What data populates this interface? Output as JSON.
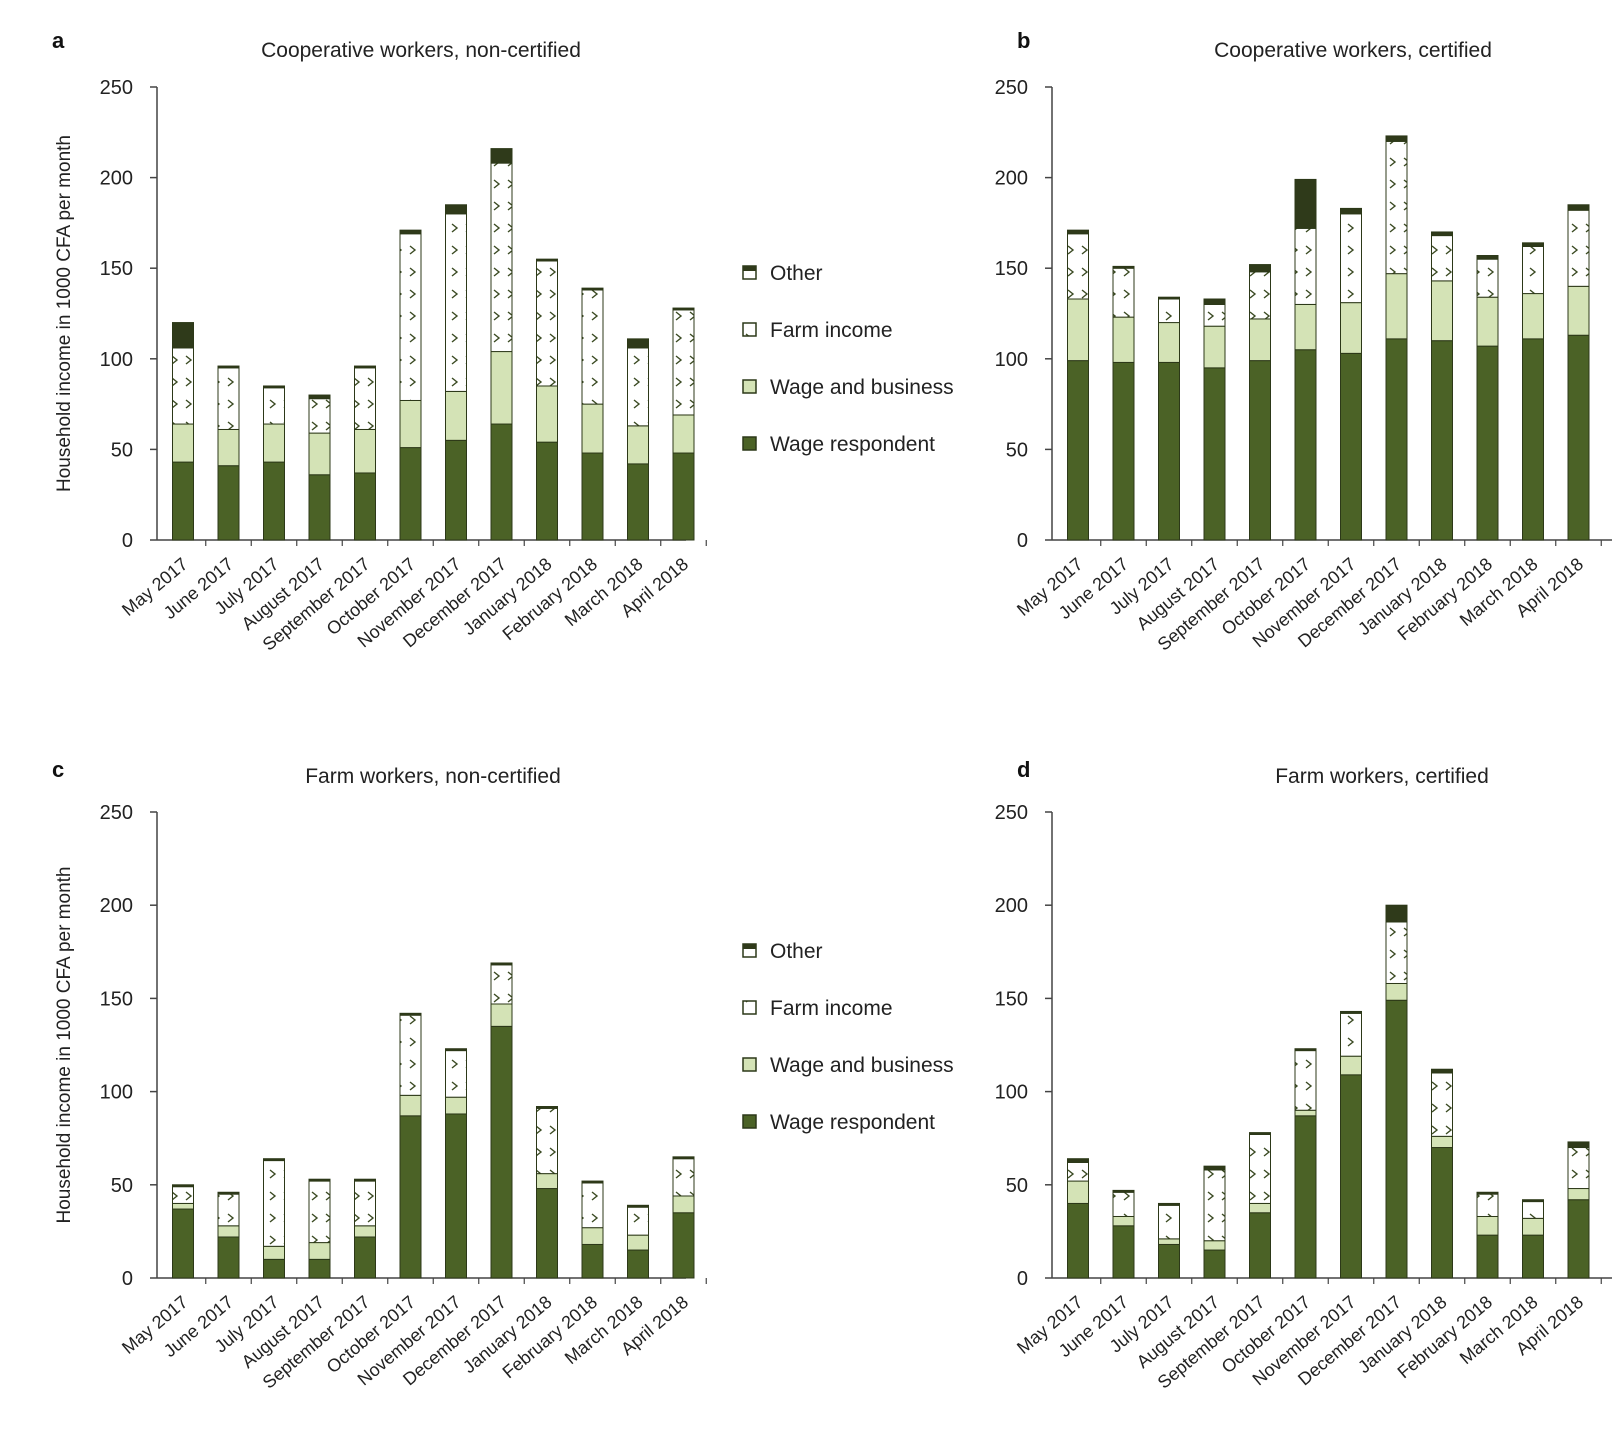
{
  "colors": {
    "wage_respondent": "#4b6226",
    "wage_and_business": "#d4e3b6",
    "farm_income": "#ffffff",
    "other": "#2f3a1a",
    "axis": "#444444"
  },
  "icons": {
    "other": "filled-top-square-icon",
    "farm_income": "hatched-square-icon",
    "wage_and_business": "light-green-square-icon",
    "wage_respondent": "dark-green-square-icon"
  },
  "legends": [
    {
      "items": [
        {
          "key": "other",
          "label": "Other"
        },
        {
          "key": "farm_income",
          "label": "Farm income"
        },
        {
          "key": "wage_and_business",
          "label": "Wage and business"
        },
        {
          "key": "wage_respondent",
          "label": "Wage respondent"
        }
      ]
    },
    {
      "items": [
        {
          "key": "other",
          "label": "Other"
        },
        {
          "key": "farm_income",
          "label": "Farm income"
        },
        {
          "key": "wage_and_business",
          "label": "Wage and business"
        },
        {
          "key": "wage_respondent",
          "label": "Wage respondent"
        }
      ]
    }
  ],
  "chart_data": [
    {
      "type": "bar",
      "stacked": true,
      "panel_letter": "a",
      "title": "Cooperative workers, non-certified",
      "ylabel": "Household income in 1000 CFA per month",
      "xlabel": "",
      "ylim": [
        0,
        250
      ],
      "yticks": [
        0,
        50,
        100,
        150,
        200,
        250
      ],
      "categories": [
        "May 2017",
        "June 2017",
        "July 2017",
        "August 2017",
        "September 2017",
        "October 2017",
        "November 2017",
        "December 2017",
        "January 2018",
        "February 2018",
        "March 2018",
        "April 2018"
      ],
      "series": [
        {
          "name": "Wage respondent",
          "values": [
            43,
            41,
            43,
            36,
            37,
            51,
            55,
            64,
            54,
            48,
            42,
            48
          ]
        },
        {
          "name": "Wage and business",
          "values": [
            21,
            20,
            21,
            23,
            24,
            26,
            27,
            40,
            31,
            27,
            21,
            21
          ]
        },
        {
          "name": "Farm income",
          "values": [
            42,
            34,
            20,
            19,
            34,
            92,
            98,
            104,
            69,
            63,
            43,
            58
          ]
        },
        {
          "name": "Other",
          "values": [
            14,
            1,
            1,
            2,
            1,
            2,
            5,
            8,
            1,
            1,
            5,
            1
          ]
        }
      ]
    },
    {
      "type": "bar",
      "stacked": true,
      "panel_letter": "b",
      "title": "Cooperative workers, certified",
      "ylabel": "",
      "xlabel": "",
      "ylim": [
        0,
        250
      ],
      "yticks": [
        0,
        50,
        100,
        150,
        200,
        250
      ],
      "categories": [
        "May 2017",
        "June 2017",
        "July 2017",
        "August 2017",
        "September 2017",
        "October 2017",
        "November 2017",
        "December 2017",
        "January 2018",
        "February 2018",
        "March 2018",
        "April 2018"
      ],
      "series": [
        {
          "name": "Wage respondent",
          "values": [
            99,
            98,
            98,
            95,
            99,
            105,
            103,
            111,
            110,
            107,
            111,
            113
          ]
        },
        {
          "name": "Wage and business",
          "values": [
            34,
            25,
            22,
            23,
            23,
            25,
            28,
            36,
            33,
            27,
            25,
            27
          ]
        },
        {
          "name": "Farm income",
          "values": [
            36,
            27,
            13,
            12,
            26,
            42,
            49,
            73,
            25,
            21,
            26,
            42
          ]
        },
        {
          "name": "Other",
          "values": [
            2,
            1,
            1,
            3,
            4,
            27,
            3,
            3,
            2,
            2,
            2,
            3
          ]
        }
      ]
    },
    {
      "type": "bar",
      "stacked": true,
      "panel_letter": "c",
      "title": "Farm workers, non-certified",
      "ylabel": "Household income in 1000 CFA per month",
      "xlabel": "",
      "ylim": [
        0,
        250
      ],
      "yticks": [
        0,
        50,
        100,
        150,
        200,
        250
      ],
      "categories": [
        "May 2017",
        "June 2017",
        "July 2017",
        "August 2017",
        "September 2017",
        "October 2017",
        "November 2017",
        "December 2017",
        "January 2018",
        "February 2018",
        "March 2018",
        "April 2018"
      ],
      "series": [
        {
          "name": "Wage respondent",
          "values": [
            37,
            22,
            10,
            10,
            22,
            87,
            88,
            135,
            48,
            18,
            15,
            35
          ]
        },
        {
          "name": "Wage and business",
          "values": [
            3,
            6,
            7,
            9,
            6,
            11,
            9,
            12,
            8,
            9,
            8,
            9
          ]
        },
        {
          "name": "Farm income",
          "values": [
            9,
            17,
            46,
            33,
            24,
            43,
            25,
            21,
            35,
            24,
            15,
            20
          ]
        },
        {
          "name": "Other",
          "values": [
            1,
            1,
            1,
            1,
            1,
            1,
            1,
            1,
            1,
            1,
            1,
            1
          ]
        }
      ]
    },
    {
      "type": "bar",
      "stacked": true,
      "panel_letter": "d",
      "title": "Farm workers, certified",
      "ylabel": "",
      "xlabel": "",
      "ylim": [
        0,
        250
      ],
      "yticks": [
        0,
        50,
        100,
        150,
        200,
        250
      ],
      "categories": [
        "May 2017",
        "June 2017",
        "July 2017",
        "August 2017",
        "September 2017",
        "October 2017",
        "November 2017",
        "December 2017",
        "January 2018",
        "February 2018",
        "March 2018",
        "April 2018"
      ],
      "series": [
        {
          "name": "Wage respondent",
          "values": [
            40,
            28,
            18,
            15,
            35,
            87,
            109,
            149,
            70,
            23,
            23,
            42
          ]
        },
        {
          "name": "Wage and business",
          "values": [
            12,
            5,
            3,
            5,
            5,
            3,
            10,
            9,
            6,
            10,
            9,
            6
          ]
        },
        {
          "name": "Farm income",
          "values": [
            10,
            13,
            18,
            38,
            37,
            32,
            23,
            33,
            34,
            12,
            9,
            22
          ]
        },
        {
          "name": "Other",
          "values": [
            2,
            1,
            1,
            2,
            1,
            1,
            1,
            9,
            2,
            1,
            1,
            3
          ]
        }
      ]
    }
  ]
}
